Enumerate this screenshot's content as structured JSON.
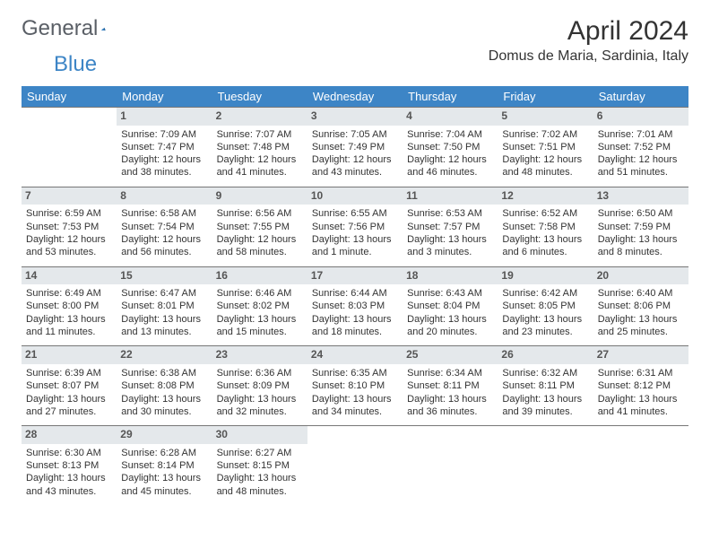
{
  "logo": {
    "text1": "General",
    "text2": "Blue"
  },
  "title": "April 2024",
  "location": "Domus de Maria, Sardinia, Italy",
  "weekdays": [
    "Sunday",
    "Monday",
    "Tuesday",
    "Wednesday",
    "Thursday",
    "Friday",
    "Saturday"
  ],
  "colors": {
    "header_bg": "#3d85c6",
    "header_fg": "#ffffff",
    "daynum_bg": "#e4e8eb",
    "border": "#777777",
    "text": "#333333"
  },
  "typography": {
    "title_fontsize": 30,
    "location_fontsize": 16,
    "weekday_fontsize": 13,
    "cell_fontsize": 11
  },
  "layout": {
    "first_weekday_index": 1,
    "rows": 5,
    "cols": 7
  },
  "days": [
    {
      "n": "1",
      "sr": "Sunrise: 7:09 AM",
      "ss": "Sunset: 7:47 PM",
      "dl": "Daylight: 12 hours and 38 minutes."
    },
    {
      "n": "2",
      "sr": "Sunrise: 7:07 AM",
      "ss": "Sunset: 7:48 PM",
      "dl": "Daylight: 12 hours and 41 minutes."
    },
    {
      "n": "3",
      "sr": "Sunrise: 7:05 AM",
      "ss": "Sunset: 7:49 PM",
      "dl": "Daylight: 12 hours and 43 minutes."
    },
    {
      "n": "4",
      "sr": "Sunrise: 7:04 AM",
      "ss": "Sunset: 7:50 PM",
      "dl": "Daylight: 12 hours and 46 minutes."
    },
    {
      "n": "5",
      "sr": "Sunrise: 7:02 AM",
      "ss": "Sunset: 7:51 PM",
      "dl": "Daylight: 12 hours and 48 minutes."
    },
    {
      "n": "6",
      "sr": "Sunrise: 7:01 AM",
      "ss": "Sunset: 7:52 PM",
      "dl": "Daylight: 12 hours and 51 minutes."
    },
    {
      "n": "7",
      "sr": "Sunrise: 6:59 AM",
      "ss": "Sunset: 7:53 PM",
      "dl": "Daylight: 12 hours and 53 minutes."
    },
    {
      "n": "8",
      "sr": "Sunrise: 6:58 AM",
      "ss": "Sunset: 7:54 PM",
      "dl": "Daylight: 12 hours and 56 minutes."
    },
    {
      "n": "9",
      "sr": "Sunrise: 6:56 AM",
      "ss": "Sunset: 7:55 PM",
      "dl": "Daylight: 12 hours and 58 minutes."
    },
    {
      "n": "10",
      "sr": "Sunrise: 6:55 AM",
      "ss": "Sunset: 7:56 PM",
      "dl": "Daylight: 13 hours and 1 minute."
    },
    {
      "n": "11",
      "sr": "Sunrise: 6:53 AM",
      "ss": "Sunset: 7:57 PM",
      "dl": "Daylight: 13 hours and 3 minutes."
    },
    {
      "n": "12",
      "sr": "Sunrise: 6:52 AM",
      "ss": "Sunset: 7:58 PM",
      "dl": "Daylight: 13 hours and 6 minutes."
    },
    {
      "n": "13",
      "sr": "Sunrise: 6:50 AM",
      "ss": "Sunset: 7:59 PM",
      "dl": "Daylight: 13 hours and 8 minutes."
    },
    {
      "n": "14",
      "sr": "Sunrise: 6:49 AM",
      "ss": "Sunset: 8:00 PM",
      "dl": "Daylight: 13 hours and 11 minutes."
    },
    {
      "n": "15",
      "sr": "Sunrise: 6:47 AM",
      "ss": "Sunset: 8:01 PM",
      "dl": "Daylight: 13 hours and 13 minutes."
    },
    {
      "n": "16",
      "sr": "Sunrise: 6:46 AM",
      "ss": "Sunset: 8:02 PM",
      "dl": "Daylight: 13 hours and 15 minutes."
    },
    {
      "n": "17",
      "sr": "Sunrise: 6:44 AM",
      "ss": "Sunset: 8:03 PM",
      "dl": "Daylight: 13 hours and 18 minutes."
    },
    {
      "n": "18",
      "sr": "Sunrise: 6:43 AM",
      "ss": "Sunset: 8:04 PM",
      "dl": "Daylight: 13 hours and 20 minutes."
    },
    {
      "n": "19",
      "sr": "Sunrise: 6:42 AM",
      "ss": "Sunset: 8:05 PM",
      "dl": "Daylight: 13 hours and 23 minutes."
    },
    {
      "n": "20",
      "sr": "Sunrise: 6:40 AM",
      "ss": "Sunset: 8:06 PM",
      "dl": "Daylight: 13 hours and 25 minutes."
    },
    {
      "n": "21",
      "sr": "Sunrise: 6:39 AM",
      "ss": "Sunset: 8:07 PM",
      "dl": "Daylight: 13 hours and 27 minutes."
    },
    {
      "n": "22",
      "sr": "Sunrise: 6:38 AM",
      "ss": "Sunset: 8:08 PM",
      "dl": "Daylight: 13 hours and 30 minutes."
    },
    {
      "n": "23",
      "sr": "Sunrise: 6:36 AM",
      "ss": "Sunset: 8:09 PM",
      "dl": "Daylight: 13 hours and 32 minutes."
    },
    {
      "n": "24",
      "sr": "Sunrise: 6:35 AM",
      "ss": "Sunset: 8:10 PM",
      "dl": "Daylight: 13 hours and 34 minutes."
    },
    {
      "n": "25",
      "sr": "Sunrise: 6:34 AM",
      "ss": "Sunset: 8:11 PM",
      "dl": "Daylight: 13 hours and 36 minutes."
    },
    {
      "n": "26",
      "sr": "Sunrise: 6:32 AM",
      "ss": "Sunset: 8:11 PM",
      "dl": "Daylight: 13 hours and 39 minutes."
    },
    {
      "n": "27",
      "sr": "Sunrise: 6:31 AM",
      "ss": "Sunset: 8:12 PM",
      "dl": "Daylight: 13 hours and 41 minutes."
    },
    {
      "n": "28",
      "sr": "Sunrise: 6:30 AM",
      "ss": "Sunset: 8:13 PM",
      "dl": "Daylight: 13 hours and 43 minutes."
    },
    {
      "n": "29",
      "sr": "Sunrise: 6:28 AM",
      "ss": "Sunset: 8:14 PM",
      "dl": "Daylight: 13 hours and 45 minutes."
    },
    {
      "n": "30",
      "sr": "Sunrise: 6:27 AM",
      "ss": "Sunset: 8:15 PM",
      "dl": "Daylight: 13 hours and 48 minutes."
    }
  ]
}
